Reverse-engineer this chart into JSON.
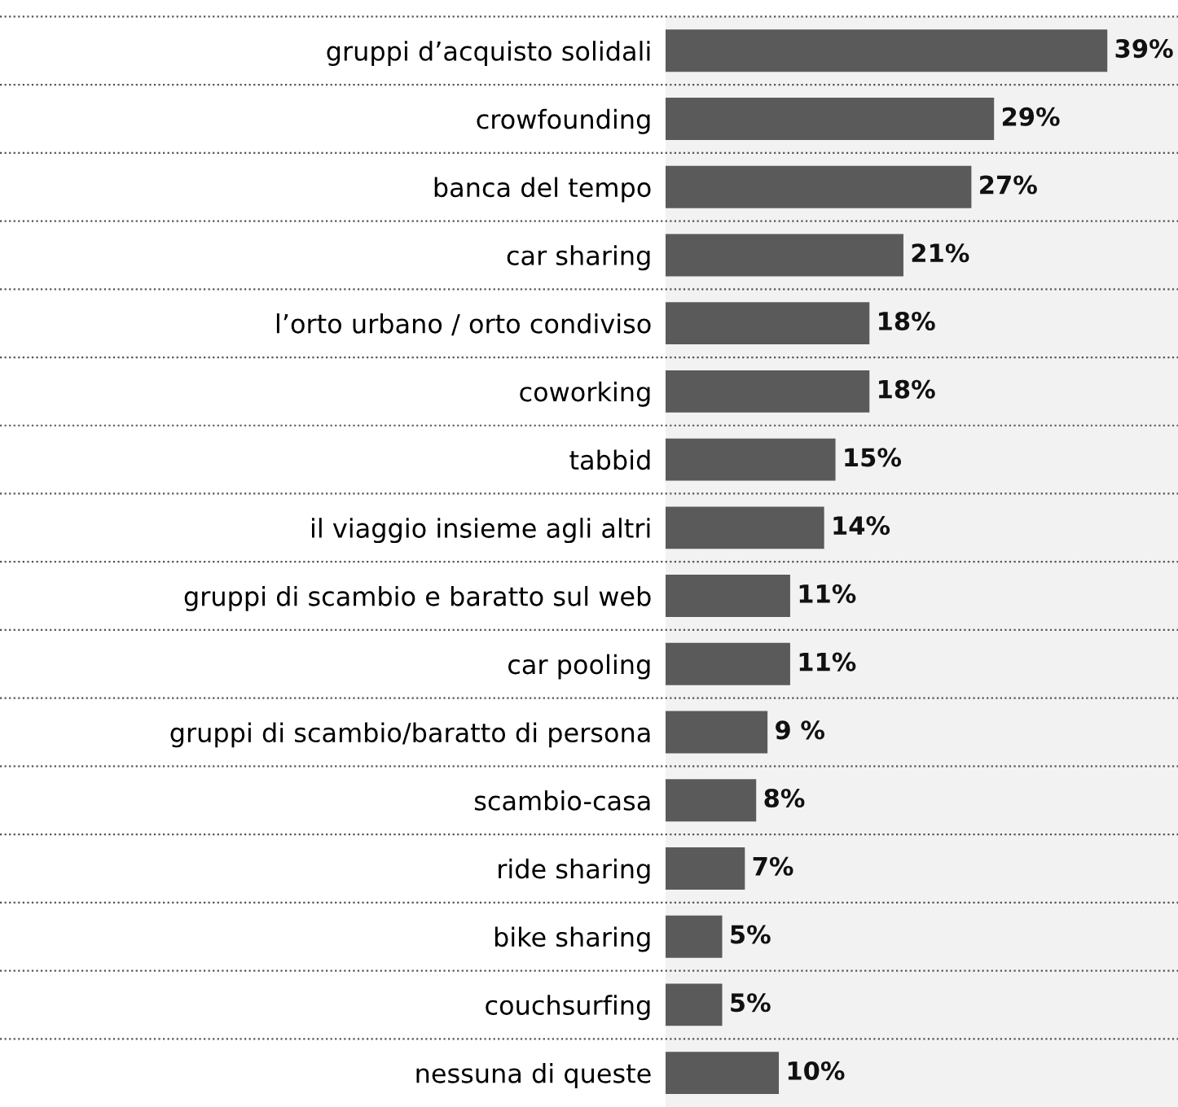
{
  "chart_data": {
    "type": "bar",
    "orientation": "horizontal",
    "categories": [
      "gruppi d’acquisto solidali",
      "crowfounding",
      "banca del tempo",
      "car sharing",
      "l’orto urbano / orto condiviso",
      "coworking",
      "tabbid",
      "il viaggio insieme agli altri",
      "gruppi di scambio e baratto sul web",
      "car pooling",
      "gruppi di scambio/baratto di persona",
      "scambio-casa",
      "ride sharing",
      "bike sharing",
      "couchsurfing",
      "nessuna di queste"
    ],
    "values": [
      39,
      29,
      27,
      21,
      18,
      18,
      15,
      14,
      11,
      11,
      9,
      8,
      7,
      5,
      5,
      10
    ],
    "value_labels": [
      "39%",
      "29%",
      "27%",
      "21%",
      "18%",
      "18%",
      "15%",
      "14%",
      "11%",
      "11%",
      "9 %",
      "8%",
      "7%",
      "5%",
      "5%",
      "10%"
    ],
    "color": "#5a5a5a",
    "grid": "y"
  }
}
